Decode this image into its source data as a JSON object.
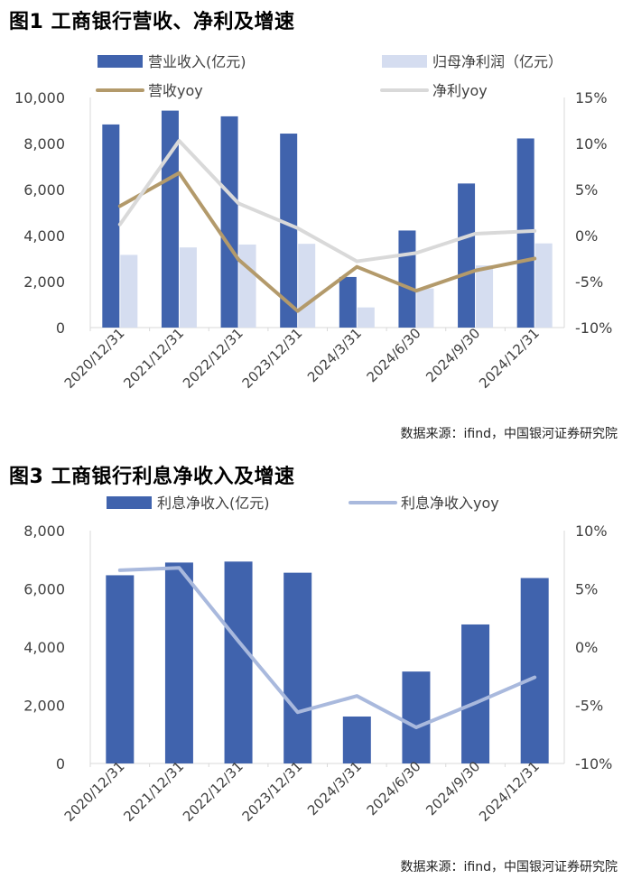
{
  "chart_data": [
    {
      "type": "bar",
      "title": "图1  工商银行营收、净利及增速",
      "source": "数据来源：ifind，中国银河证券研究院",
      "categories": [
        "2020/12/31",
        "2021/12/31",
        "2022/12/31",
        "2023/12/31",
        "2024/3/31",
        "2024/6/30",
        "2024/9/30",
        "2024/12/31"
      ],
      "y_left": {
        "min": 0,
        "max": 10000,
        "ticks": [
          "0",
          "2,000",
          "4,000",
          "6,000",
          "8,000",
          "10,000"
        ]
      },
      "y_right": {
        "min": -10,
        "max": 15,
        "ticks": [
          "-10%",
          "-5%",
          "0%",
          "5%",
          "10%",
          "15%"
        ]
      },
      "legend": [
        "营业收入(亿元)",
        "归母净利润（亿元）",
        "营收yoy",
        "净利yoy"
      ],
      "series": [
        {
          "name": "营业收入(亿元)",
          "kind": "bar",
          "axis": "left",
          "color": "#4063AD",
          "values": [
            8827,
            9428,
            9180,
            8430,
            2199,
            4218,
            6261,
            8218
          ]
        },
        {
          "name": "归母净利润（亿元）",
          "kind": "bar",
          "axis": "left",
          "color": "#D5DDF0",
          "values": [
            3159,
            3483,
            3610,
            3640,
            876,
            1700,
            2700,
            3659
          ]
        },
        {
          "name": "营收yoy",
          "kind": "line",
          "axis": "right",
          "color": "#B39A6B",
          "values": [
            3.2,
            6.8,
            -2.6,
            -8.2,
            -3.4,
            -6.0,
            -3.8,
            -2.5
          ]
        },
        {
          "name": "净利yoy",
          "kind": "line",
          "axis": "right",
          "color": "#D9D9D9",
          "values": [
            1.2,
            10.3,
            3.5,
            0.8,
            -2.8,
            -1.9,
            0.2,
            0.5
          ]
        }
      ]
    },
    {
      "type": "bar",
      "title": "图3  工商银行利息净收入及增速",
      "source": "数据来源：ifind，中国银河证券研究院",
      "categories": [
        "2020/12/31",
        "2021/12/31",
        "2022/12/31",
        "2023/12/31",
        "2024/3/31",
        "2024/6/30",
        "2024/9/30",
        "2024/12/31"
      ],
      "y_left": {
        "min": 0,
        "max": 8000,
        "ticks": [
          "0",
          "2,000",
          "4,000",
          "6,000",
          "8,000"
        ]
      },
      "y_right": {
        "min": -10,
        "max": 10,
        "ticks": [
          "-10%",
          "-5%",
          "0%",
          "5%",
          "10%"
        ]
      },
      "legend": [
        "利息净收入(亿元)",
        "利息净收入yoy"
      ],
      "series": [
        {
          "name": "利息净收入(亿元)",
          "kind": "bar",
          "axis": "left",
          "color": "#4063AD",
          "values": [
            6467,
            6903,
            6937,
            6554,
            1613,
            3158,
            4776,
            6371
          ]
        },
        {
          "name": "利息净收入yoy",
          "kind": "line",
          "axis": "right",
          "color": "#A9B9DD",
          "values": [
            6.6,
            6.8,
            0.5,
            -5.6,
            -4.2,
            -6.9,
            -4.8,
            -2.6
          ]
        }
      ]
    }
  ]
}
